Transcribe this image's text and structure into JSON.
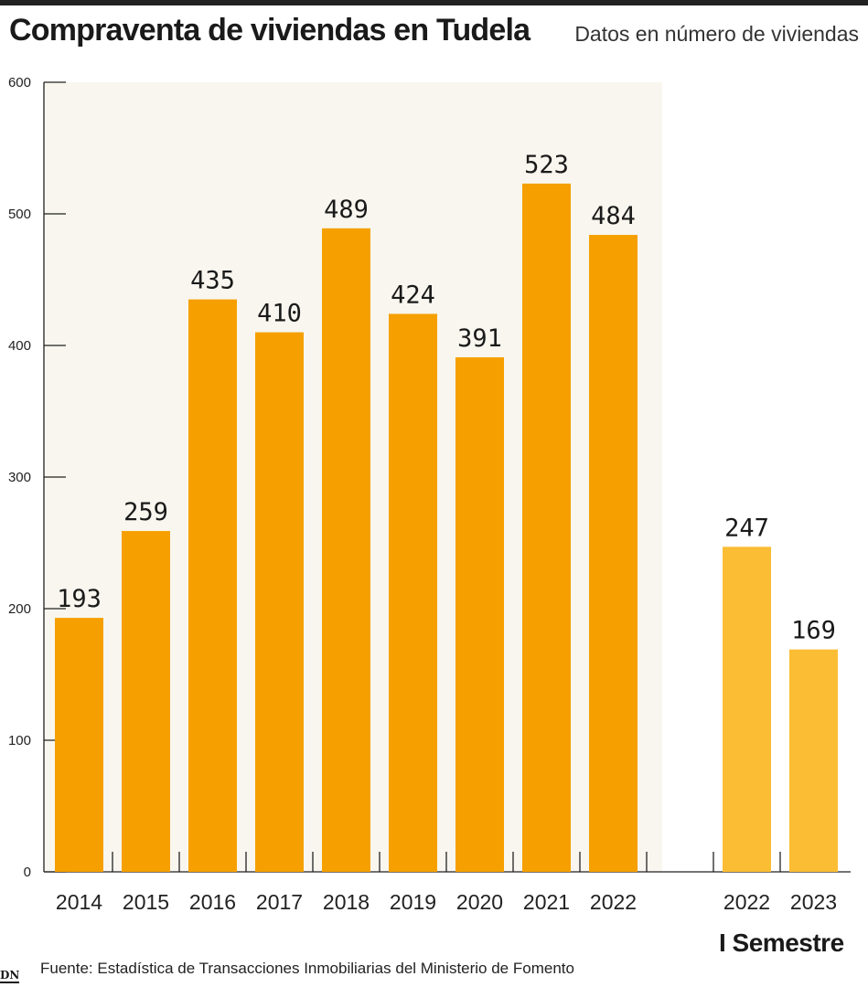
{
  "header": {
    "title": "Compraventa de viviendas en Tudela",
    "subtitle": "Datos en número de viviendas"
  },
  "footer": {
    "source": "Fuente: Estadística de Transacciones Inmobiliarias del Ministerio de Fomento",
    "logo": "DN"
  },
  "colors": {
    "annual_bar": "#f5a000",
    "semester_bar": "#fbbd33",
    "shaded_background": "#f8f6ee"
  },
  "chart_data": {
    "type": "bar",
    "title": "Compraventa de viviendas en Tudela",
    "subtitle": "Datos en número de viviendas",
    "ylim": [
      0,
      600
    ],
    "yticks": [
      0,
      100,
      200,
      300,
      400,
      500,
      600
    ],
    "grid": false,
    "series": [
      {
        "categories": [
          "2014",
          "2015",
          "2016",
          "2017",
          "2018",
          "2019",
          "2020",
          "2021",
          "2022"
        ],
        "values": [
          193,
          259,
          435,
          410,
          489,
          424,
          391,
          523,
          484
        ]
      },
      {
        "name": "I Semestre",
        "categories": [
          "2022",
          "2023"
        ],
        "values": [
          247,
          169
        ]
      }
    ]
  }
}
